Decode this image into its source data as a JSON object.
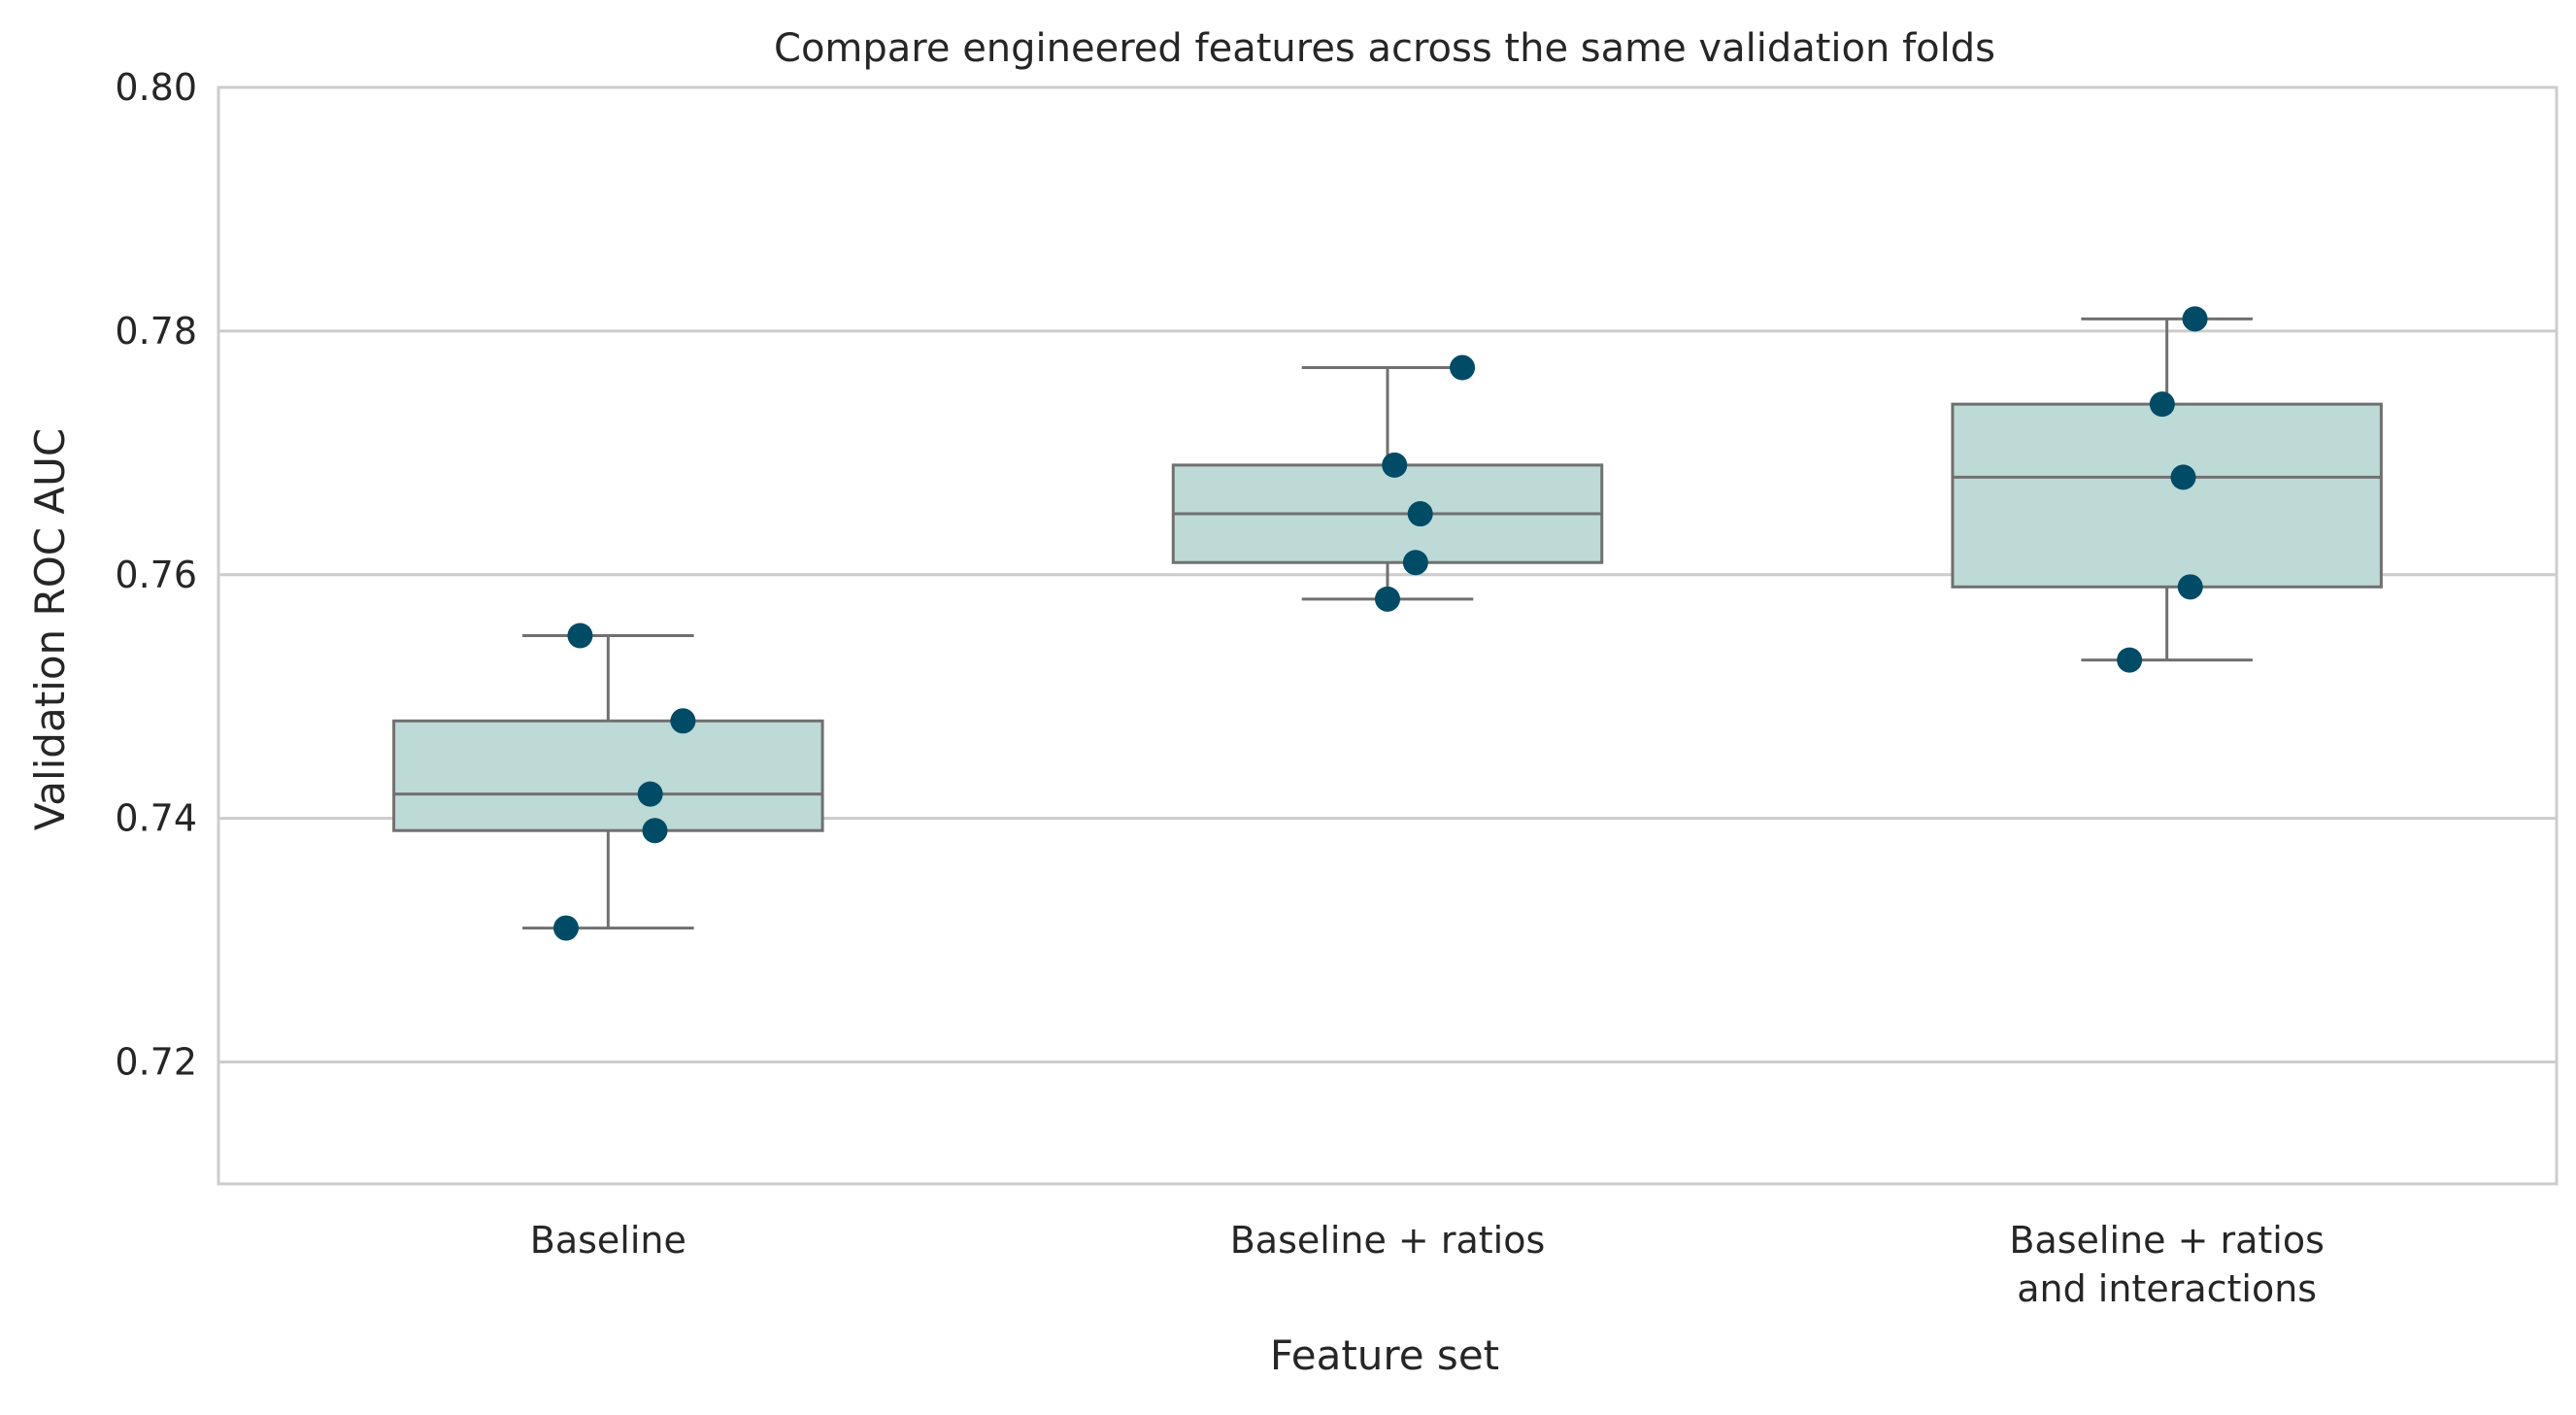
{
  "chart_data": {
    "type": "box",
    "title": "Compare engineered features across the same validation folds",
    "xlabel": "Feature set",
    "ylabel": "Validation ROC AUC",
    "ylim": [
      0.71,
      0.8
    ],
    "yticks": [
      "0.72",
      "0.74",
      "0.76",
      "0.78",
      "0.80"
    ],
    "grid": "horizontal",
    "categories": [
      [
        "Baseline"
      ],
      [
        "Baseline + ratios"
      ],
      [
        "Baseline + ratios",
        "and interactions"
      ]
    ],
    "boxes": [
      {
        "whisker_low": 0.731,
        "q1": 0.739,
        "median": 0.742,
        "q3": 0.748,
        "whisker_high": 0.755
      },
      {
        "whisker_low": 0.758,
        "q1": 0.761,
        "median": 0.765,
        "q3": 0.769,
        "whisker_high": 0.777
      },
      {
        "whisker_low": 0.753,
        "q1": 0.759,
        "median": 0.768,
        "q3": 0.774,
        "whisker_high": 0.781
      }
    ],
    "points": [
      [
        0.755,
        0.748,
        0.742,
        0.739,
        0.731
      ],
      [
        0.777,
        0.769,
        0.765,
        0.761,
        0.758
      ],
      [
        0.781,
        0.774,
        0.768,
        0.759,
        0.753
      ]
    ],
    "colors": {
      "box_fill": "#bddad7",
      "box_edge": "#707070",
      "point": "#004c66",
      "grid": "#cccccc",
      "frame": "#cccccc"
    }
  }
}
